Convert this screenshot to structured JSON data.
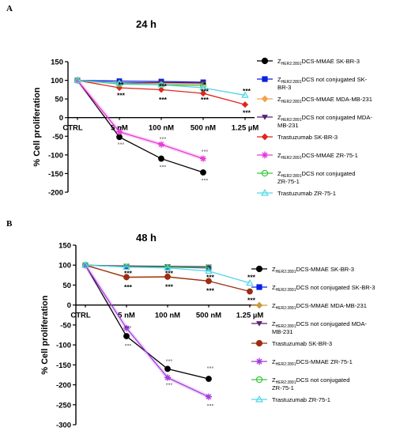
{
  "chart_data": [
    {
      "panel_label": "A",
      "type": "line",
      "title": "24 h",
      "ylabel": "% Cell proliferation",
      "ylim": [
        -200,
        150
      ],
      "yticks": [
        150,
        100,
        50,
        0,
        -50,
        -100,
        -150,
        -200
      ],
      "categories": [
        "CTRL",
        "5 nM",
        "100 nM",
        "500 nM",
        "1.25 µM"
      ],
      "series": [
        {
          "name_prefix": "Z",
          "name_sub": "HER2:2891",
          "name_rest": "DCS-MMAE SK-BR-3",
          "name_line2": "",
          "color": "#000000",
          "marker": "circle",
          "values": [
            100,
            -52,
            -110,
            -147,
            null
          ]
        },
        {
          "name_prefix": "Z",
          "name_sub": "HER2:2891",
          "name_rest": "DCS not conjugated SK-",
          "name_line2": "BR-3",
          "color": "#0a1ee6",
          "marker": "square",
          "values": [
            100,
            98,
            97,
            95,
            null
          ]
        },
        {
          "name_prefix": "Z",
          "name_sub": "HER2:2891",
          "name_rest": "DCS-MMAE MDA-MB-231",
          "name_line2": "",
          "color": "#f5a14a",
          "marker": "diamond",
          "values": [
            100,
            92,
            91,
            90,
            null
          ]
        },
        {
          "name_prefix": "Z",
          "name_sub": "HER2:2891",
          "name_rest": "DCS not conjugated MDA-",
          "name_line2": "MB-231",
          "color": "#5a1f74",
          "marker": "triangle-down",
          "values": [
            100,
            93,
            94,
            93,
            null
          ]
        },
        {
          "name_prefix": "",
          "name_sub": "",
          "name_rest": "Trastuzumab SK-BR-3",
          "name_line2": "",
          "color": "#e0261b",
          "marker": "diamond",
          "values": [
            100,
            80,
            75,
            65,
            35
          ]
        },
        {
          "name_prefix": "Z",
          "name_sub": "HER2:2891",
          "name_rest": "DCS-MMAE ZR-75-1",
          "name_line2": "",
          "color": "#e63ad8",
          "marker": "star",
          "values": [
            100,
            -38,
            -72,
            -110,
            null
          ]
        },
        {
          "name_prefix": "Z",
          "name_sub": "HER2:2891",
          "name_rest": "DCS not conjugated",
          "name_line2": "ZR-75-1",
          "color": "#3cc63c",
          "marker": "circle-open",
          "values": [
            100,
            90,
            88,
            86,
            null
          ]
        },
        {
          "name_prefix": "",
          "name_sub": "",
          "name_rest": "Trastuzumab ZR-75-1",
          "name_line2": "",
          "color": "#4fd6e8",
          "marker": "triangle-open",
          "values": [
            100,
            92,
            88,
            80,
            60
          ]
        }
      ],
      "annotations": [
        {
          "text": "**",
          "x": "5 nM",
          "y": 88
        },
        {
          "text": "***",
          "x": "5 nM",
          "y": 60
        },
        {
          "text": "***",
          "x": "100 nM",
          "y": 84
        },
        {
          "text": "***",
          "x": "100 nM",
          "y": 48
        },
        {
          "text": "*",
          "x": "500 nM",
          "y": 88
        },
        {
          "text": "***",
          "x": "500 nM",
          "y": 70
        },
        {
          "text": "***",
          "x": "500 nM",
          "y": 48
        },
        {
          "text": "***",
          "x": "1.25 µM",
          "y": 72
        },
        {
          "text": "***",
          "x": "1.25 µM",
          "y": 13
        },
        {
          "text": "°°°",
          "x": "5 nM",
          "y": -28
        },
        {
          "text": "°°°",
          "x": "5 nM",
          "y": -72
        },
        {
          "text": "°°°",
          "x": "100 nM",
          "y": -57
        },
        {
          "text": "°°°",
          "x": "100 nM",
          "y": -132
        },
        {
          "text": "°°°",
          "x": "500 nM",
          "y": -91
        },
        {
          "text": "°°°",
          "x": "500 nM",
          "y": -168
        }
      ]
    },
    {
      "panel_label": "B",
      "type": "line",
      "title": "48 h",
      "ylabel": "% Cell proliferation",
      "ylim": [
        -300,
        150
      ],
      "yticks": [
        150,
        100,
        50,
        0,
        -50,
        -100,
        -150,
        -200,
        -250,
        -300
      ],
      "categories": [
        "CTRL",
        "5 nM",
        "100 nM",
        "500 nM",
        "1.25 µM"
      ],
      "series": [
        {
          "name_prefix": "Z",
          "name_sub": "HER2:2891",
          "name_rest": "DCS-MMAE SK-BR-3",
          "name_line2": "",
          "color": "#000000",
          "marker": "circle",
          "values": [
            100,
            -78,
            -160,
            -185,
            null
          ]
        },
        {
          "name_prefix": "Z",
          "name_sub": "HER2:2891",
          "name_rest": "DCS not conjugated SK-BR-3",
          "name_line2": "",
          "color": "#0a1ee6",
          "marker": "square",
          "values": [
            100,
            96,
            95,
            93,
            null
          ]
        },
        {
          "name_prefix": "Z",
          "name_sub": "HER2:2891",
          "name_rest": "DCS-MMAE MDA-MB-231",
          "name_line2": "",
          "color": "#c89a3c",
          "marker": "diamond",
          "values": [
            100,
            69,
            70,
            60,
            null
          ]
        },
        {
          "name_prefix": "Z",
          "name_sub": "HER2:2891",
          "name_rest": "DCS not conjugated MDA-",
          "name_line2": "MB-231",
          "color": "#5a1f74",
          "marker": "triangle-down",
          "values": [
            100,
            98,
            97,
            96,
            null
          ]
        },
        {
          "name_prefix": "",
          "name_sub": "",
          "name_rest": "Trastuzumab SK-BR-3",
          "name_line2": "",
          "color": "#9c2d12",
          "marker": "circle",
          "values": [
            100,
            70,
            71,
            60,
            34
          ]
        },
        {
          "name_prefix": "Z",
          "name_sub": "HER2:2891",
          "name_rest": "DCS-MMAE ZR-75-1",
          "name_line2": "",
          "color": "#a53ce0",
          "marker": "star",
          "values": [
            100,
            -58,
            -182,
            -230,
            null
          ]
        },
        {
          "name_prefix": "Z",
          "name_sub": "HER2:2891",
          "name_rest": "DCS not conjugated",
          "name_line2": "ZR-75-1",
          "color": "#3cc63c",
          "marker": "circle-open",
          "values": [
            100,
            96,
            95,
            94,
            null
          ]
        },
        {
          "name_prefix": "",
          "name_sub": "",
          "name_rest": "Trastuzumab ZR-75-1",
          "name_line2": "",
          "color": "#4fd6e8",
          "marker": "triangle-open",
          "values": [
            100,
            95,
            93,
            85,
            55
          ]
        }
      ],
      "annotations": [
        {
          "text": "***",
          "x": "5 nM",
          "y": 80
        },
        {
          "text": "***",
          "x": "5 nM",
          "y": 45
        },
        {
          "text": "***",
          "x": "100 nM",
          "y": 80
        },
        {
          "text": "***",
          "x": "100 nM",
          "y": 46
        },
        {
          "text": "***",
          "x": "500 nM",
          "y": 70
        },
        {
          "text": "***",
          "x": "500 nM",
          "y": 36
        },
        {
          "text": "***",
          "x": "1.25 µM",
          "y": 70
        },
        {
          "text": "***",
          "x": "1.25 µM",
          "y": 12
        },
        {
          "text": "°°°",
          "x": "5 nM",
          "y": -57
        },
        {
          "text": "°°°",
          "x": "5 nM",
          "y": -102
        },
        {
          "text": "°°°",
          "x": "100 nM",
          "y": -140
        },
        {
          "text": "°°°",
          "x": "100 nM",
          "y": -200
        },
        {
          "text": "°°°",
          "x": "500 nM",
          "y": -158
        },
        {
          "text": "°°°",
          "x": "500 nM",
          "y": -252
        }
      ]
    }
  ]
}
